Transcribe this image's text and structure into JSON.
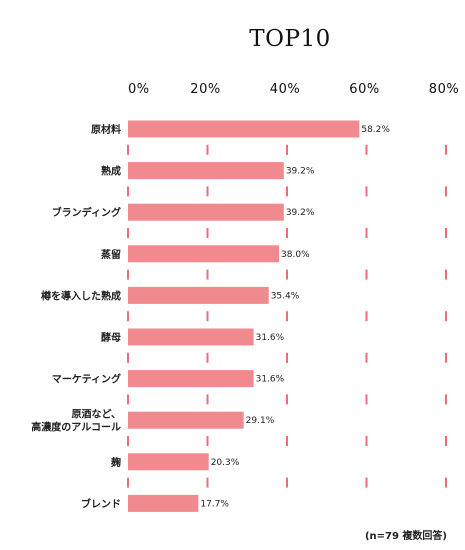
{
  "chart_data": {
    "type": "bar",
    "orientation": "horizontal",
    "title": "TOP10",
    "ticks": [
      "0%",
      "20%",
      "40%",
      "60%",
      "80%"
    ],
    "xlim": [
      0,
      80
    ],
    "categories": [
      [
        "原材料"
      ],
      [
        "熟成"
      ],
      [
        "ブランディング"
      ],
      [
        "蒸留"
      ],
      [
        "樽を導入した熟成"
      ],
      [
        "酵母"
      ],
      [
        "マーケティング"
      ],
      [
        "原酒など、",
        "高濃度のアルコール"
      ],
      [
        "麹"
      ],
      [
        "ブレンド"
      ]
    ],
    "values": [
      58.2,
      39.2,
      39.2,
      38.0,
      35.4,
      31.6,
      31.6,
      29.1,
      20.3,
      17.7
    ],
    "value_labels": [
      "58.2%",
      "39.2%",
      "39.2%",
      "38.0%",
      "35.4%",
      "31.6%",
      "31.6%",
      "29.1%",
      "20.3%",
      "17.7%"
    ],
    "bar_color": "#f08a8f",
    "guide_color": "#ef6d78",
    "grid": "dashed",
    "footnote": "(n=79 複数回答)"
  }
}
